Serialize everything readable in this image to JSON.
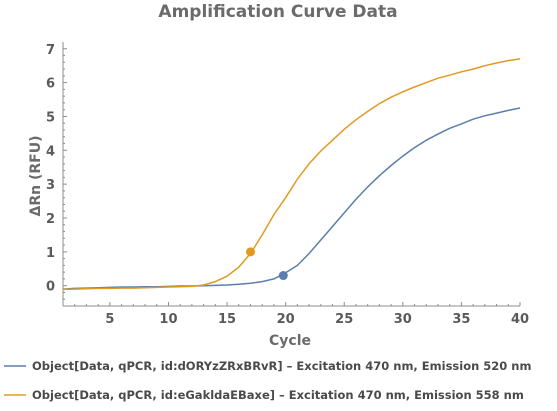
{
  "chart_data": {
    "type": "line",
    "title": "Amplification Curve Data",
    "xlabel": "Cycle",
    "ylabel": "ΔRn (RFU)",
    "xlim": [
      1,
      40
    ],
    "ylim": [
      -0.6,
      7.2
    ],
    "x_ticks": [
      5,
      10,
      15,
      20,
      25,
      30,
      35,
      40
    ],
    "y_ticks": [
      0,
      1,
      2,
      3,
      4,
      5,
      6,
      7
    ],
    "grid": false,
    "legend_position": "bottom",
    "series": [
      {
        "name": "Object[Data, qPCR, id:dORYzZRxBRvR] – Excitation 470 nm, Emission 520 nm",
        "color": "#5b7fad",
        "x": [
          1,
          2,
          3,
          4,
          5,
          6,
          7,
          8,
          9,
          10,
          11,
          12,
          13,
          14,
          15,
          16,
          17,
          18,
          19,
          20,
          21,
          22,
          23,
          24,
          25,
          26,
          27,
          28,
          29,
          30,
          31,
          32,
          33,
          34,
          35,
          36,
          37,
          38,
          39,
          40
        ],
        "y": [
          -0.1,
          -0.08,
          -0.07,
          -0.06,
          -0.05,
          -0.04,
          -0.04,
          -0.03,
          -0.03,
          -0.02,
          -0.01,
          -0.01,
          0.0,
          0.01,
          0.02,
          0.04,
          0.07,
          0.12,
          0.2,
          0.38,
          0.6,
          0.95,
          1.35,
          1.75,
          2.15,
          2.55,
          2.92,
          3.25,
          3.55,
          3.83,
          4.08,
          4.3,
          4.48,
          4.65,
          4.78,
          4.92,
          5.02,
          5.1,
          5.18,
          5.25
        ],
        "marker": {
          "x": 19.8,
          "y": 0.3
        }
      },
      {
        "name": "Object[Data, qPCR, id:eGakldaEBaxe] – Excitation 470 nm, Emission 558 nm",
        "color": "#e09a22",
        "x": [
          1,
          2,
          3,
          4,
          5,
          6,
          7,
          8,
          9,
          10,
          11,
          12,
          13,
          14,
          15,
          16,
          17,
          18,
          19,
          20,
          21,
          22,
          23,
          24,
          25,
          26,
          27,
          28,
          29,
          30,
          31,
          32,
          33,
          34,
          35,
          36,
          37,
          38,
          39,
          40
        ],
        "y": [
          -0.11,
          -0.1,
          -0.09,
          -0.08,
          -0.08,
          -0.07,
          -0.07,
          -0.06,
          -0.05,
          -0.04,
          -0.03,
          -0.02,
          0.02,
          0.12,
          0.28,
          0.55,
          0.95,
          1.5,
          2.1,
          2.6,
          3.15,
          3.6,
          3.98,
          4.3,
          4.62,
          4.9,
          5.15,
          5.38,
          5.57,
          5.73,
          5.87,
          6.0,
          6.13,
          6.22,
          6.32,
          6.4,
          6.5,
          6.58,
          6.65,
          6.7
        ],
        "marker": {
          "x": 17.0,
          "y": 1.0
        }
      }
    ]
  }
}
